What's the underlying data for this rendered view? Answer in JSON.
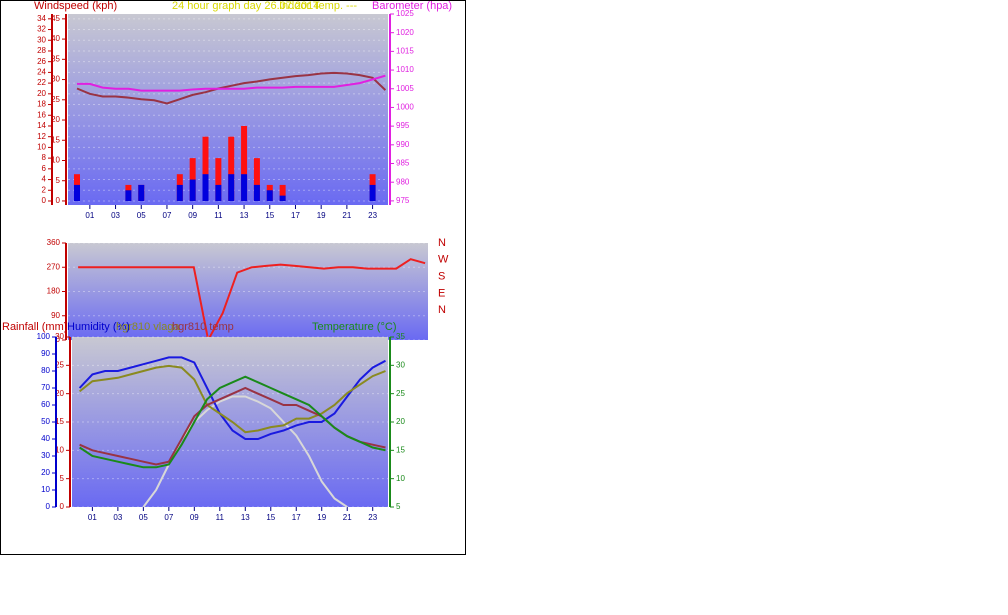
{
  "chart_data": [
    {
      "type": "line",
      "title": "24 hour graph day 26.07.2014",
      "y_label": "Windspeed (kph)",
      "y2_label": "Barometer (hpa)",
      "x": [
        0,
        1,
        2,
        3,
        4,
        5,
        6,
        7,
        8,
        9,
        10,
        11,
        12,
        13,
        14,
        15,
        16,
        17,
        18,
        19,
        20,
        21,
        22,
        23,
        24
      ],
      "xlim": [
        -0.7,
        24.2
      ],
      "xticks": [
        {
          "value": 1,
          "label": "01"
        },
        {
          "value": 3,
          "label": "03"
        },
        {
          "value": 5,
          "label": "05"
        },
        {
          "value": 7,
          "label": "07"
        },
        {
          "value": 9,
          "label": "09"
        },
        {
          "value": 11,
          "label": "11"
        },
        {
          "value": 13,
          "label": "13"
        },
        {
          "value": 15,
          "label": "15"
        },
        {
          "value": 17,
          "label": "17"
        },
        {
          "value": 19,
          "label": "19"
        },
        {
          "value": 21,
          "label": "21"
        },
        {
          "value": 23,
          "label": "23"
        }
      ],
      "ylim": [
        -0.75,
        34.9
      ],
      "yticks": [
        0,
        2,
        4,
        6,
        8,
        10,
        12,
        14,
        16,
        18,
        20,
        22,
        24,
        26,
        28,
        30,
        32,
        34
      ],
      "y3lim": [
        -1,
        46.2
      ],
      "y3ticks": [
        0,
        5,
        10,
        15,
        20,
        25,
        30,
        35,
        40,
        45
      ],
      "y2lim": [
        973.9,
        1025
      ],
      "y2ticks": [
        975,
        980,
        985,
        990,
        995,
        1000,
        1005,
        1010,
        1015,
        1020,
        1025
      ],
      "grid": true,
      "series": [
        {
          "type": "line",
          "name": "Indoor Temp. ---",
          "color": "#993344",
          "axis": "y",
          "values": [
            21,
            20,
            19.5,
            19.5,
            19.3,
            19,
            18.8,
            18.2,
            19,
            19.8,
            20.3,
            21,
            21.5,
            22,
            22.3,
            22.7,
            23,
            23.3,
            23.5,
            23.8,
            23.9,
            23.8,
            23.5,
            23,
            20.7
          ]
        },
        {
          "type": "line",
          "color": "#e020e0",
          "axis": "y2",
          "values": [
            1006.3,
            1006.3,
            1005.3,
            1005,
            1005,
            1004.5,
            1004.5,
            1004.5,
            1004.5,
            1004.8,
            1005,
            1005,
            1005,
            1005,
            1005.3,
            1005.3,
            1005.3,
            1005.5,
            1005.5,
            1005.5,
            1005.5,
            1006,
            1006.5,
            1007.5,
            1008.5
          ]
        },
        {
          "type": "bar",
          "color": "#ff1010",
          "axis": "y",
          "values": [
            5,
            0,
            0,
            0,
            3,
            3,
            0,
            0,
            5,
            8,
            12,
            8,
            12,
            14,
            8,
            3,
            3,
            0,
            0,
            0,
            0,
            0,
            0,
            5,
            0
          ]
        },
        {
          "type": "bar",
          "color": "#0000dd",
          "axis": "y",
          "values": [
            3,
            0,
            0,
            0,
            2,
            3,
            0,
            0,
            3,
            4,
            5,
            3,
            5,
            5,
            3,
            2,
            1,
            0,
            0,
            0,
            0,
            0,
            0,
            3,
            0
          ]
        }
      ]
    },
    {
      "type": "line",
      "x": [
        0,
        1,
        2,
        3,
        4,
        5,
        6,
        7,
        8,
        9,
        10,
        11,
        12,
        13,
        14,
        15,
        16,
        17,
        18,
        19,
        20,
        21,
        22,
        23,
        24
      ],
      "xlim": [
        -0.7,
        24.2
      ],
      "ylim": [
        0,
        360
      ],
      "yticks": [
        0,
        90,
        180,
        270,
        360
      ],
      "compass_labels": [
        "N",
        "W",
        "S",
        "E",
        "N"
      ],
      "grid": true,
      "series": [
        {
          "type": "line",
          "color": "#ee2020",
          "axis": "y",
          "values": [
            270,
            270,
            270,
            270,
            270,
            270,
            270,
            270,
            270,
            0,
            100,
            250,
            270,
            275,
            280,
            275,
            270,
            265,
            270,
            270,
            265,
            265,
            265,
            300,
            285
          ]
        }
      ]
    },
    {
      "type": "line",
      "y_label": "Rainfall (mm)",
      "y3_label": "Humidity (%)",
      "y2_label": "Temperature (°C)",
      "x": [
        0,
        1,
        2,
        3,
        4,
        5,
        6,
        7,
        8,
        9,
        10,
        11,
        12,
        13,
        14,
        15,
        16,
        17,
        18,
        19,
        20,
        21,
        22,
        23,
        24
      ],
      "xlim": [
        -0.6,
        24.2
      ],
      "xticks": [
        {
          "value": 1,
          "label": "01"
        },
        {
          "value": 3,
          "label": "03"
        },
        {
          "value": 5,
          "label": "05"
        },
        {
          "value": 7,
          "label": "07"
        },
        {
          "value": 9,
          "label": "09"
        },
        {
          "value": 11,
          "label": "11"
        },
        {
          "value": 13,
          "label": "13"
        },
        {
          "value": 15,
          "label": "15"
        },
        {
          "value": 17,
          "label": "17"
        },
        {
          "value": 19,
          "label": "19"
        },
        {
          "value": 21,
          "label": "21"
        },
        {
          "value": 23,
          "label": "23"
        }
      ],
      "ylim": [
        0,
        30
      ],
      "yticks": [
        0,
        5,
        10,
        15,
        20,
        25,
        30
      ],
      "y3lim": [
        0,
        100
      ],
      "y3ticks": [
        0,
        10,
        20,
        30,
        40,
        50,
        60,
        70,
        80,
        90,
        100
      ],
      "y2lim": [
        5,
        35
      ],
      "y2ticks": [
        5,
        10,
        15,
        20,
        25,
        30,
        35
      ],
      "grid": true,
      "series": [
        {
          "type": "line",
          "color": "#d8d8d8",
          "axis": "y3",
          "values": [
            null,
            null,
            null,
            null,
            null,
            0,
            10,
            25,
            40,
            50,
            57,
            62,
            65,
            65,
            62,
            58,
            50,
            42,
            30,
            15,
            5,
            0,
            null,
            null,
            null
          ]
        },
        {
          "type": "line",
          "color": "#1a1ae0",
          "axis": "y3",
          "values": [
            70,
            78,
            80,
            80,
            82,
            84,
            86,
            88,
            88,
            85,
            70,
            55,
            45,
            40,
            40,
            43,
            45,
            48,
            50,
            50,
            55,
            65,
            75,
            82,
            86
          ]
        },
        {
          "type": "line",
          "name": "hgr810 vlaga",
          "color": "#8a8a20",
          "axis": "y3",
          "values": [
            68,
            74,
            75,
            76,
            78,
            80,
            82,
            83,
            82,
            75,
            60,
            55,
            50,
            44,
            45,
            47,
            48,
            52,
            52,
            55,
            60,
            67,
            72,
            77,
            80
          ]
        },
        {
          "type": "line",
          "name": "hgr810 temp",
          "color": "#993344",
          "axis": "y2",
          "values": [
            16,
            15,
            14.5,
            14,
            13.5,
            13,
            12.5,
            13,
            17,
            21,
            23,
            24,
            25,
            26,
            25,
            24,
            23,
            23,
            22,
            21,
            19,
            17.5,
            16.5,
            16,
            15.5
          ]
        },
        {
          "type": "line",
          "color": "#1a8a1a",
          "axis": "y2",
          "values": [
            15.5,
            14,
            13.5,
            13,
            12.5,
            12,
            12,
            12.5,
            16,
            20,
            24,
            26,
            27,
            28,
            27,
            26,
            25,
            24,
            23,
            21,
            19,
            17.5,
            16.5,
            15.5,
            15
          ]
        }
      ]
    }
  ]
}
